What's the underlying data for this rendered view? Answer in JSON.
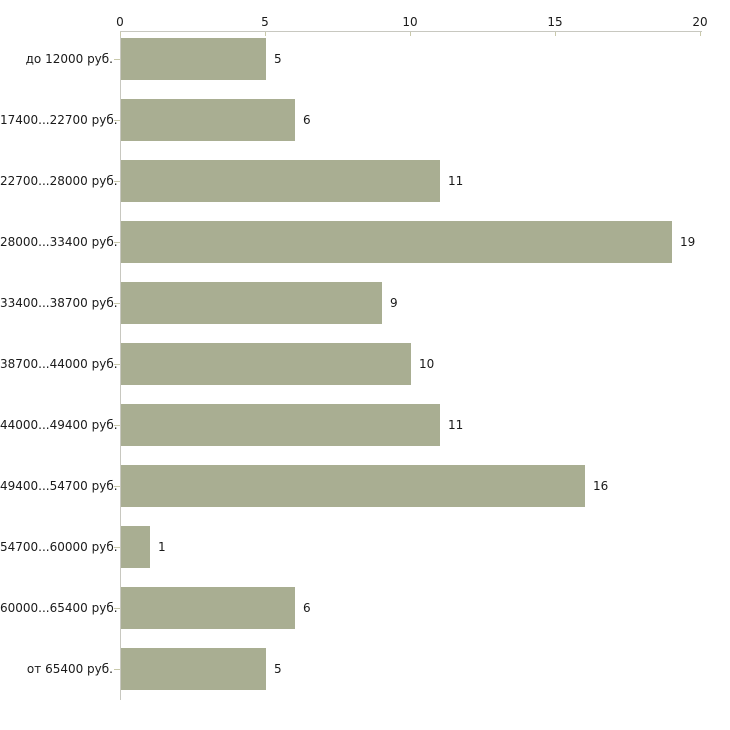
{
  "chart_data": {
    "type": "bar",
    "orientation": "horizontal",
    "categories": [
      "до 12000 руб.",
      "17400...22700 руб.",
      "22700...28000 руб.",
      "28000...33400 руб.",
      "33400...38700 руб.",
      "38700...44000 руб.",
      "44000...49400 руб.",
      "49400...54700 руб.",
      "54700...60000 руб.",
      "60000...65400 руб.",
      "от 65400 руб."
    ],
    "values": [
      5,
      6,
      11,
      19,
      9,
      10,
      11,
      16,
      1,
      6,
      5
    ],
    "value_labels": [
      "5",
      "6",
      "11",
      "19",
      "9",
      "10",
      "11",
      "16",
      "1",
      "6",
      "5"
    ],
    "x_ticks": [
      "0",
      "5",
      "10",
      "15",
      "20"
    ],
    "xlim": [
      0,
      20
    ],
    "legend": "none",
    "grid": "off",
    "axis_position": "top",
    "colors": {
      "bar": "#a9ae92",
      "axis_line": "#c8c8c0",
      "tick_mark": "#c9c9ab",
      "text": "#1a1a1a",
      "background": "#ffffff"
    }
  }
}
